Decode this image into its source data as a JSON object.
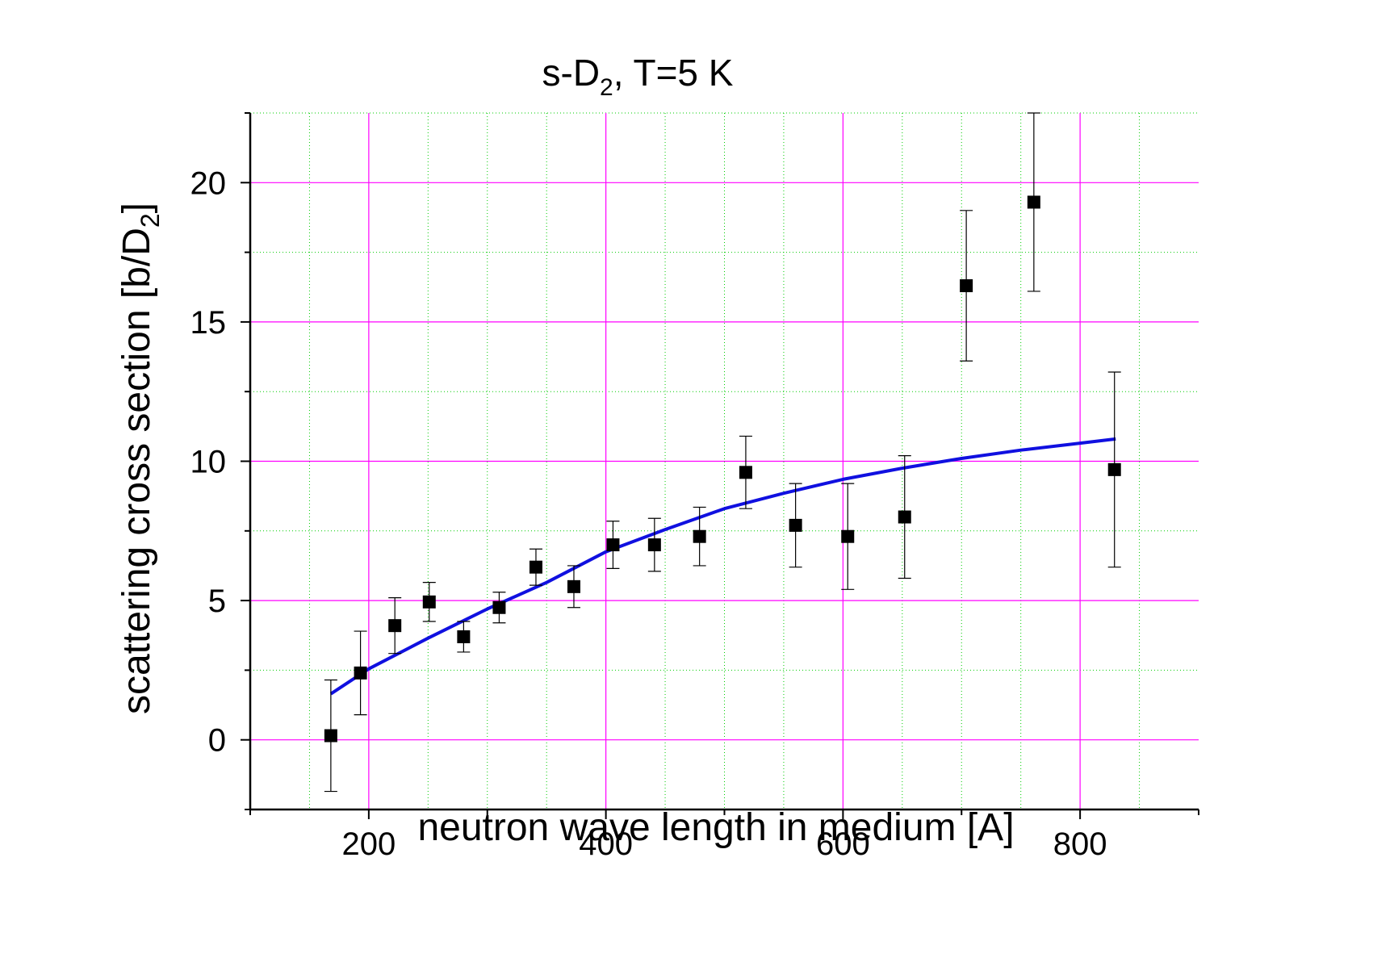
{
  "chart_data": {
    "type": "scatter",
    "title_main": "s-D",
    "title_sub": "2",
    "title_rest": ", T=5 K",
    "xlabel": "neutron wave length in medium [A]",
    "ylabel_main": "scattering cross section [b/D",
    "ylabel_sub": "2",
    "ylabel_end": "]",
    "xlim": [
      100,
      900
    ],
    "ylim": [
      -2.5,
      22.5
    ],
    "x_ticks": [
      200,
      400,
      600,
      800
    ],
    "x_tick_labels": [
      "200",
      "400",
      "600",
      "800"
    ],
    "y_ticks": [
      0,
      5,
      10,
      15,
      20
    ],
    "y_tick_labels": [
      "0",
      "5",
      "10",
      "15",
      "20"
    ],
    "grid": true,
    "colors": {
      "major_grid": "#ff00ff",
      "minor_grid": "#00cc00",
      "fit_line": "#1010e0",
      "points": "#000000"
    },
    "series": [
      {
        "name": "measured",
        "kind": "scatter-errorbar",
        "x": [
          168,
          193,
          222,
          251,
          280,
          310,
          341,
          373,
          406,
          441,
          479,
          518,
          560,
          604,
          652,
          704,
          761,
          829
        ],
        "y": [
          0.15,
          2.4,
          4.1,
          4.95,
          3.7,
          4.75,
          6.2,
          5.5,
          7.0,
          7.0,
          7.3,
          9.6,
          7.7,
          7.3,
          8.0,
          16.3,
          19.3,
          9.7
        ],
        "err": [
          2.0,
          1.5,
          1.0,
          0.7,
          0.55,
          0.55,
          0.65,
          0.75,
          0.85,
          0.95,
          1.05,
          1.3,
          1.5,
          1.9,
          2.2,
          2.7,
          3.2,
          3.5
        ]
      },
      {
        "name": "fit",
        "kind": "line",
        "x": [
          168,
          200,
          250,
          300,
          350,
          400,
          450,
          500,
          550,
          600,
          650,
          700,
          750,
          800,
          830
        ],
        "y": [
          1.65,
          2.55,
          3.65,
          4.7,
          5.65,
          6.75,
          7.55,
          8.3,
          8.85,
          9.35,
          9.75,
          10.1,
          10.4,
          10.65,
          10.8
        ]
      }
    ]
  }
}
